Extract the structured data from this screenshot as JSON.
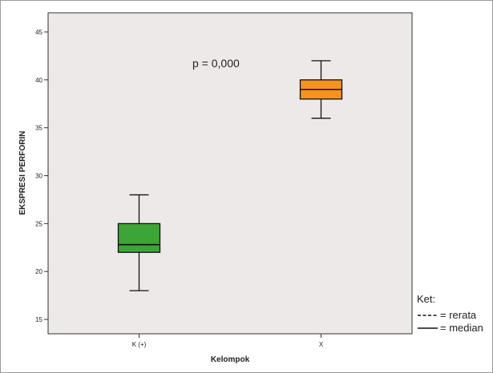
{
  "chart_data": {
    "type": "box",
    "xlabel": "Kelompok",
    "ylabel": "EKSPRESI PERFORIN",
    "ylim": [
      13.5,
      47
    ],
    "yticks": [
      15,
      20,
      25,
      30,
      35,
      40,
      45
    ],
    "plot_background": "#ede9e9",
    "categories": [
      "K (+)",
      "X"
    ],
    "boxes": [
      {
        "category": "K (+)",
        "min": 18,
        "q1": 22,
        "median": 22.8,
        "mean": 22.8,
        "q3": 25,
        "max": 28,
        "color": "#3da535"
      },
      {
        "category": "X",
        "min": 36,
        "q1": 38,
        "median": 39,
        "mean": 39,
        "q3": 40,
        "max": 42,
        "color": "#f7921e"
      }
    ],
    "annotation": "p = 0,000",
    "legend": {
      "title": "Ket:",
      "items": [
        {
          "style": "dashed",
          "label": "= rerata"
        },
        {
          "style": "solid",
          "label": "= median"
        }
      ]
    }
  }
}
